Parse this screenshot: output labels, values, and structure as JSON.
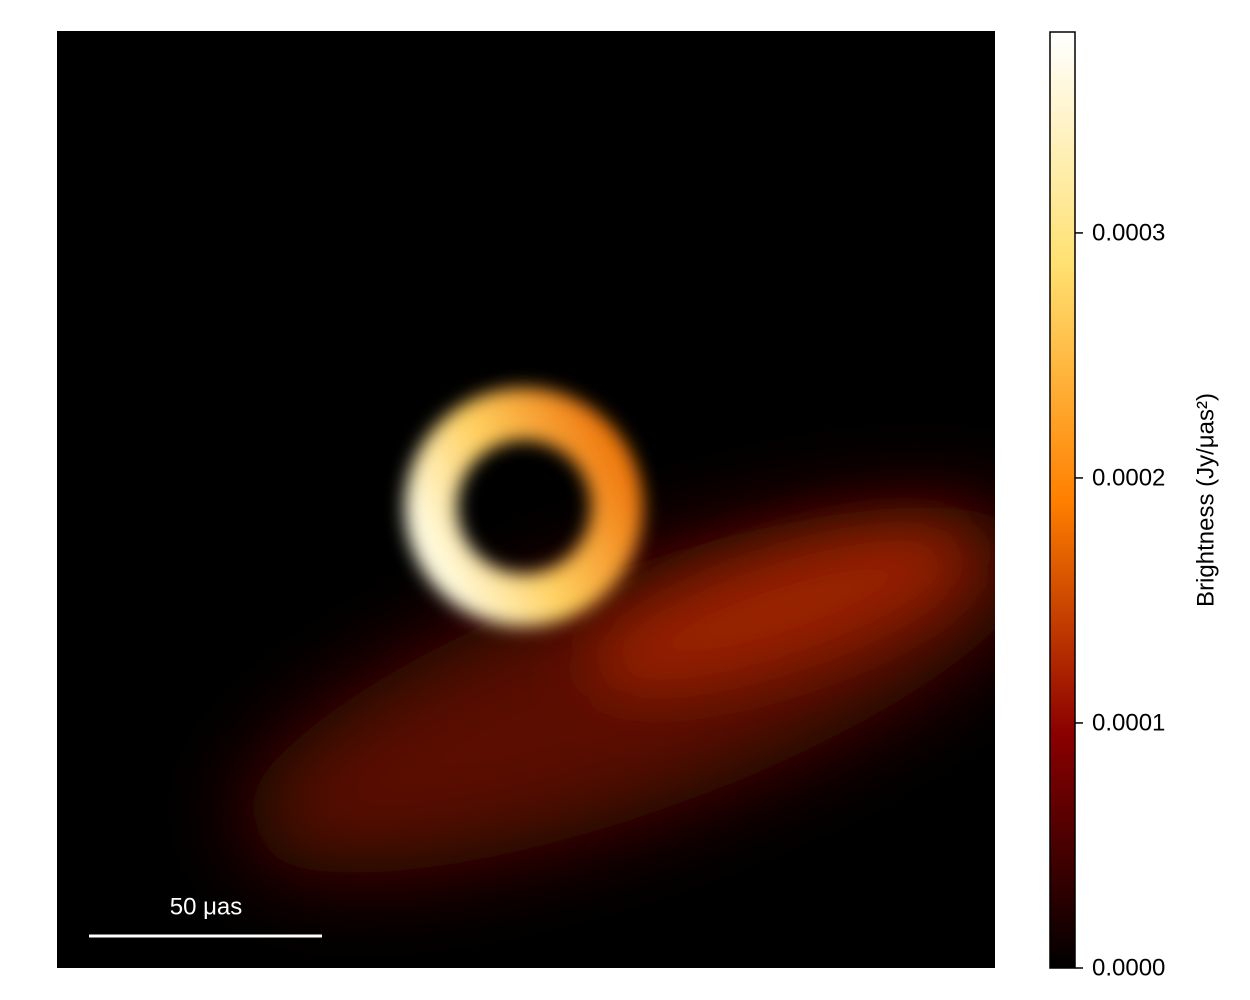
{
  "chart_data": {
    "type": "image",
    "scale_bar_label": "50 μas",
    "colorbar_label": "Brightness (Jy/μas²)",
    "clim": [
      0,
      0.000382
    ],
    "cticks": [
      {
        "value": 0,
        "label": "0.0000"
      },
      {
        "value": 0.0001,
        "label": "0.0001"
      },
      {
        "value": 0.0002,
        "label": "0.0002"
      },
      {
        "value": 0.0003,
        "label": "0.0003"
      }
    ],
    "colormap": [
      "#000000",
      "#8b0000",
      "#ff8000",
      "#ffe070",
      "#ffffff"
    ]
  }
}
